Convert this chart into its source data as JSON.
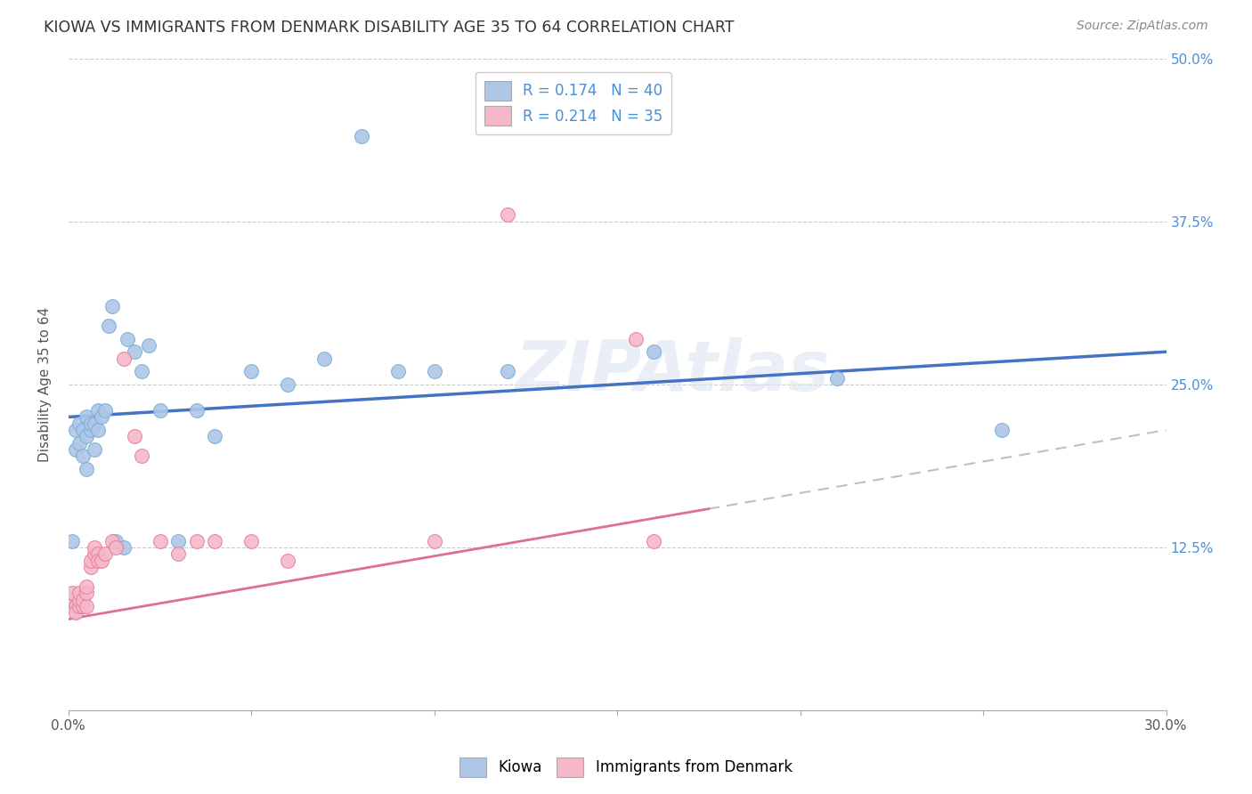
{
  "title": "KIOWA VS IMMIGRANTS FROM DENMARK DISABILITY AGE 35 TO 64 CORRELATION CHART",
  "source": "Source: ZipAtlas.com",
  "ylabel": "Disability Age 35 to 64",
  "xlim": [
    0.0,
    0.3
  ],
  "ylim": [
    0.0,
    0.5
  ],
  "yticks_right": [
    0.0,
    0.125,
    0.25,
    0.375,
    0.5
  ],
  "ytick_labels_right": [
    "",
    "12.5%",
    "25.0%",
    "37.5%",
    "50.0%"
  ],
  "legend_entries": [
    {
      "label": "R = 0.174   N = 40",
      "color": "#aec6e8"
    },
    {
      "label": "R = 0.214   N = 35",
      "color": "#f4b8c8"
    }
  ],
  "kiowa_color": "#aec6e8",
  "denmark_color": "#f4b8c8",
  "kiowa_edge": "#7bafd4",
  "denmark_edge": "#e87fa0",
  "trend_kiowa_color": "#4472c4",
  "trend_denmark_color": "#e07090",
  "trend_denmark_dash_color": "#c0c0c0",
  "watermark": "ZIPAtlas",
  "kiowa_x": [
    0.001,
    0.002,
    0.002,
    0.003,
    0.003,
    0.004,
    0.004,
    0.005,
    0.005,
    0.005,
    0.006,
    0.006,
    0.007,
    0.007,
    0.008,
    0.008,
    0.009,
    0.01,
    0.011,
    0.012,
    0.013,
    0.015,
    0.016,
    0.018,
    0.02,
    0.022,
    0.025,
    0.03,
    0.035,
    0.04,
    0.05,
    0.06,
    0.07,
    0.08,
    0.09,
    0.1,
    0.12,
    0.16,
    0.21,
    0.255
  ],
  "kiowa_y": [
    0.13,
    0.2,
    0.215,
    0.22,
    0.205,
    0.195,
    0.215,
    0.185,
    0.21,
    0.225,
    0.215,
    0.22,
    0.2,
    0.22,
    0.215,
    0.23,
    0.225,
    0.23,
    0.295,
    0.31,
    0.13,
    0.125,
    0.285,
    0.275,
    0.26,
    0.28,
    0.23,
    0.13,
    0.23,
    0.21,
    0.26,
    0.25,
    0.27,
    0.44,
    0.26,
    0.26,
    0.26,
    0.275,
    0.255,
    0.215
  ],
  "denmark_x": [
    0.001,
    0.001,
    0.002,
    0.002,
    0.003,
    0.003,
    0.003,
    0.004,
    0.004,
    0.005,
    0.005,
    0.005,
    0.006,
    0.006,
    0.007,
    0.007,
    0.008,
    0.008,
    0.009,
    0.01,
    0.012,
    0.013,
    0.015,
    0.018,
    0.02,
    0.025,
    0.03,
    0.035,
    0.04,
    0.05,
    0.06,
    0.1,
    0.12,
    0.155,
    0.16
  ],
  "denmark_y": [
    0.085,
    0.09,
    0.08,
    0.075,
    0.08,
    0.085,
    0.09,
    0.08,
    0.085,
    0.08,
    0.09,
    0.095,
    0.11,
    0.115,
    0.12,
    0.125,
    0.12,
    0.115,
    0.115,
    0.12,
    0.13,
    0.125,
    0.27,
    0.21,
    0.195,
    0.13,
    0.12,
    0.13,
    0.13,
    0.13,
    0.115,
    0.13,
    0.38,
    0.285,
    0.13
  ]
}
